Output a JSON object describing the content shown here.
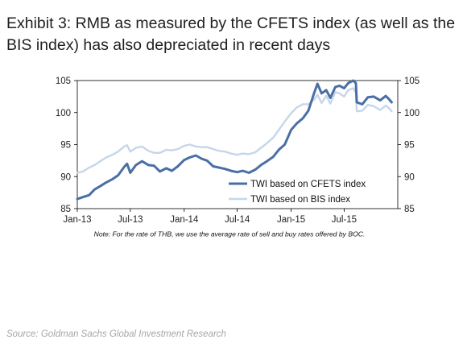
{
  "exhibit": {
    "title": "Exhibit 3: RMB as measured by the CFETS index (as well as the BIS index) has also depreciated in recent days",
    "source": "Source: Goldman Sachs Global Investment Research"
  },
  "chart_data": {
    "type": "line",
    "title": "",
    "xlabel": "",
    "ylabel": "",
    "note": "Note: For the rate of THB, we use the average rate of sell and buy rates offered by BOC.",
    "x_start": "2013-01-01",
    "x_end": "2015-12-31",
    "x_ticks": [
      {
        "date": "2013-01-01",
        "label": "Jan-13"
      },
      {
        "date": "2013-07-01",
        "label": "Jul-13"
      },
      {
        "date": "2014-01-01",
        "label": "Jan-14"
      },
      {
        "date": "2014-07-01",
        "label": "Jul-14"
      },
      {
        "date": "2015-01-01",
        "label": "Jan-15"
      },
      {
        "date": "2015-07-01",
        "label": "Jul-15"
      }
    ],
    "ylim": [
      85,
      105
    ],
    "y_ticks": [
      85,
      90,
      95,
      100,
      105
    ],
    "y_right_ticks": [
      85,
      90,
      95,
      100,
      105
    ],
    "grid": false,
    "legend_position": "bottom-right",
    "series": [
      {
        "name": "TWI based on CFETS index",
        "color": "#4a6fa5",
        "points": [
          [
            "2013-01-01",
            86.5
          ],
          [
            "2013-01-20",
            86.8
          ],
          [
            "2013-02-10",
            87.1
          ],
          [
            "2013-03-01",
            88.0
          ],
          [
            "2013-03-20",
            88.5
          ],
          [
            "2013-04-10",
            89.1
          ],
          [
            "2013-05-01",
            89.6
          ],
          [
            "2013-05-20",
            90.2
          ],
          [
            "2013-06-10",
            91.5
          ],
          [
            "2013-06-20",
            92.0
          ],
          [
            "2013-07-01",
            90.6
          ],
          [
            "2013-07-20",
            91.8
          ],
          [
            "2013-08-10",
            92.4
          ],
          [
            "2013-09-01",
            91.8
          ],
          [
            "2013-09-20",
            91.7
          ],
          [
            "2013-10-10",
            90.8
          ],
          [
            "2013-11-01",
            91.3
          ],
          [
            "2013-11-20",
            90.9
          ],
          [
            "2013-12-10",
            91.6
          ],
          [
            "2014-01-01",
            92.6
          ],
          [
            "2014-01-20",
            93.0
          ],
          [
            "2014-02-10",
            93.3
          ],
          [
            "2014-03-01",
            92.8
          ],
          [
            "2014-03-20",
            92.5
          ],
          [
            "2014-04-10",
            91.6
          ],
          [
            "2014-05-01",
            91.4
          ],
          [
            "2014-05-20",
            91.2
          ],
          [
            "2014-06-10",
            90.9
          ],
          [
            "2014-07-01",
            90.7
          ],
          [
            "2014-07-20",
            90.9
          ],
          [
            "2014-08-10",
            90.6
          ],
          [
            "2014-09-01",
            91.1
          ],
          [
            "2014-09-20",
            91.8
          ],
          [
            "2014-10-10",
            92.4
          ],
          [
            "2014-11-01",
            93.1
          ],
          [
            "2014-11-20",
            94.2
          ],
          [
            "2014-12-10",
            95.0
          ],
          [
            "2015-01-01",
            97.3
          ],
          [
            "2015-01-20",
            98.3
          ],
          [
            "2015-02-10",
            99.1
          ],
          [
            "2015-03-01",
            100.3
          ],
          [
            "2015-03-20",
            103.0
          ],
          [
            "2015-04-01",
            104.5
          ],
          [
            "2015-04-15",
            103.0
          ],
          [
            "2015-05-01",
            103.5
          ],
          [
            "2015-05-15",
            102.3
          ],
          [
            "2015-06-01",
            104.0
          ],
          [
            "2015-06-15",
            104.2
          ],
          [
            "2015-07-01",
            103.8
          ],
          [
            "2015-07-15",
            104.6
          ],
          [
            "2015-08-01",
            105.0
          ],
          [
            "2015-08-10",
            104.6
          ],
          [
            "2015-08-13",
            101.6
          ],
          [
            "2015-09-01",
            101.3
          ],
          [
            "2015-09-20",
            102.4
          ],
          [
            "2015-10-10",
            102.5
          ],
          [
            "2015-11-01",
            101.9
          ],
          [
            "2015-11-20",
            102.6
          ],
          [
            "2015-12-01",
            102.1
          ],
          [
            "2015-12-10",
            101.6
          ]
        ]
      },
      {
        "name": "TWI based on BIS index",
        "color": "#c6d6ea",
        "points": [
          [
            "2013-01-01",
            90.6
          ],
          [
            "2013-01-20",
            90.8
          ],
          [
            "2013-02-10",
            91.4
          ],
          [
            "2013-03-01",
            91.8
          ],
          [
            "2013-03-20",
            92.4
          ],
          [
            "2013-04-10",
            93.0
          ],
          [
            "2013-05-01",
            93.4
          ],
          [
            "2013-05-20",
            93.9
          ],
          [
            "2013-06-10",
            94.7
          ],
          [
            "2013-06-20",
            94.9
          ],
          [
            "2013-07-01",
            93.9
          ],
          [
            "2013-07-20",
            94.5
          ],
          [
            "2013-08-10",
            94.7
          ],
          [
            "2013-09-01",
            94.0
          ],
          [
            "2013-09-20",
            93.7
          ],
          [
            "2013-10-10",
            93.7
          ],
          [
            "2013-11-01",
            94.2
          ],
          [
            "2013-11-20",
            94.1
          ],
          [
            "2013-12-10",
            94.3
          ],
          [
            "2014-01-01",
            94.8
          ],
          [
            "2014-01-20",
            95.0
          ],
          [
            "2014-02-10",
            94.7
          ],
          [
            "2014-03-01",
            94.6
          ],
          [
            "2014-03-20",
            94.6
          ],
          [
            "2014-04-10",
            94.3
          ],
          [
            "2014-05-01",
            94.0
          ],
          [
            "2014-05-20",
            93.9
          ],
          [
            "2014-06-10",
            93.6
          ],
          [
            "2014-07-01",
            93.4
          ],
          [
            "2014-07-20",
            93.6
          ],
          [
            "2014-08-10",
            93.5
          ],
          [
            "2014-09-01",
            93.8
          ],
          [
            "2014-09-20",
            94.5
          ],
          [
            "2014-10-10",
            95.2
          ],
          [
            "2014-11-01",
            96.1
          ],
          [
            "2014-11-20",
            97.3
          ],
          [
            "2014-12-10",
            98.6
          ],
          [
            "2015-01-01",
            99.9
          ],
          [
            "2015-01-20",
            100.8
          ],
          [
            "2015-02-10",
            101.3
          ],
          [
            "2015-03-01",
            101.3
          ],
          [
            "2015-03-20",
            102.0
          ],
          [
            "2015-04-01",
            102.8
          ],
          [
            "2015-04-15",
            101.5
          ],
          [
            "2015-05-01",
            102.6
          ],
          [
            "2015-05-15",
            101.4
          ],
          [
            "2015-06-01",
            103.2
          ],
          [
            "2015-06-15",
            103.0
          ],
          [
            "2015-07-01",
            102.5
          ],
          [
            "2015-07-15",
            103.5
          ],
          [
            "2015-08-01",
            103.8
          ],
          [
            "2015-08-10",
            103.1
          ],
          [
            "2015-08-13",
            100.2
          ],
          [
            "2015-09-01",
            100.3
          ],
          [
            "2015-09-20",
            101.2
          ],
          [
            "2015-10-10",
            101.0
          ],
          [
            "2015-11-01",
            100.4
          ],
          [
            "2015-11-20",
            101.1
          ],
          [
            "2015-12-01",
            100.7
          ],
          [
            "2015-12-10",
            100.2
          ]
        ]
      }
    ]
  }
}
